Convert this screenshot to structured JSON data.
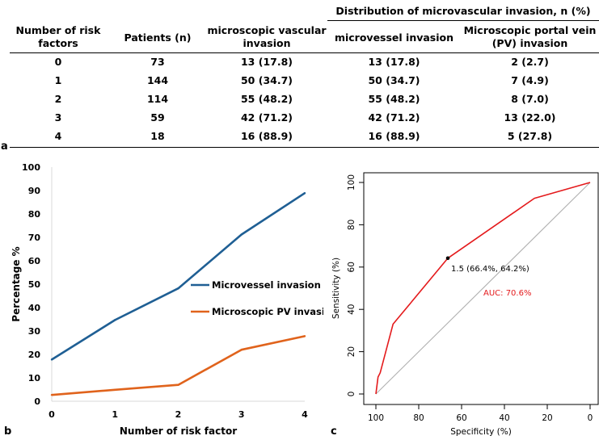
{
  "table": {
    "panel_label": "a",
    "group_header": "Distribution of microvascular invasion, n (%)",
    "headers": {
      "risk_factors": [
        "Number of risk",
        "factors"
      ],
      "patients": "Patients (n)",
      "mvi": [
        "microscopic vascular",
        "invasion"
      ],
      "microvessel": "microvessel invasion",
      "pv": [
        "Microscopic portal vein",
        "(PV) invasion"
      ]
    },
    "rows": [
      [
        "0",
        "73",
        "13 (17.8)",
        "13 (17.8)",
        "2 (2.7)"
      ],
      [
        "1",
        "144",
        "50 (34.7)",
        "50 (34.7)",
        "7 (4.9)"
      ],
      [
        "2",
        "114",
        "55 (48.2)",
        "55 (48.2)",
        "8 (7.0)"
      ],
      [
        "3",
        "59",
        "42 (71.2)",
        "42 (71.2)",
        "13 (22.0)"
      ],
      [
        "4",
        "18",
        "16 (88.9)",
        "16 (88.9)",
        "5 (27.8)"
      ]
    ]
  },
  "chart_data": [
    {
      "type": "line",
      "panel_label": "b",
      "xlabel": "Number of risk factor",
      "ylabel": "Percentage %",
      "x": [
        0,
        1,
        2,
        3,
        4
      ],
      "xticks": [
        "0",
        "1",
        "2",
        "3",
        "4"
      ],
      "ylim": [
        0,
        100
      ],
      "yticks": [
        "0",
        "10",
        "20",
        "30",
        "40",
        "50",
        "60",
        "70",
        "80",
        "90",
        "100"
      ],
      "series": [
        {
          "name": "Microvessel invasion",
          "color": "#1f5f94",
          "values": [
            17.8,
            34.7,
            48.2,
            71.2,
            88.9
          ]
        },
        {
          "name": "Microscopic PV invasion",
          "color": "#e0631c",
          "values": [
            2.7,
            4.9,
            7.0,
            22.0,
            27.8
          ]
        }
      ]
    },
    {
      "type": "line",
      "panel_label": "c",
      "xlabel": "Specificity (%)",
      "ylabel": "Sensitivity (%)",
      "xlim": [
        100,
        0
      ],
      "ylim": [
        0,
        100
      ],
      "xticks": [
        "100",
        "80",
        "60",
        "40",
        "20",
        "0"
      ],
      "yticks": [
        "0",
        "20",
        "40",
        "60",
        "80",
        "100"
      ],
      "roc": {
        "color": "#e41a1c",
        "specificity": [
          100,
          99.5,
          99,
          98,
          92,
          66.4,
          26,
          0
        ],
        "sensitivity": [
          0,
          4,
          8,
          10,
          33,
          64.2,
          92.5,
          100
        ]
      },
      "diagonal_color": "#b0b0b0",
      "annotation_point": {
        "specificity": 66.4,
        "sensitivity": 64.2,
        "label": "1.5 (66.4%, 64.2%)"
      },
      "auc_label": "AUC: 70.6%",
      "auc_color": "#e41a1c"
    }
  ]
}
